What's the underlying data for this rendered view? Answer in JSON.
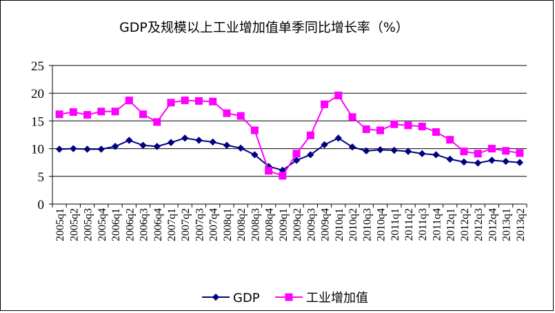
{
  "chart_data": {
    "type": "line",
    "title": "GDP及规模以上工业增加值单季同比增长率（%）",
    "xlabel": "",
    "ylabel": "",
    "ylim": [
      0,
      25
    ],
    "yticks": [
      "0",
      "5",
      "10",
      "15",
      "20",
      "25"
    ],
    "grid": "horizontal",
    "legend_position": "bottom",
    "categories": [
      "2005q1",
      "2005q2",
      "2005q3",
      "2005q4",
      "2006q1",
      "2006q2",
      "2006q3",
      "2006q4",
      "2007q1",
      "2007q2",
      "2007q3",
      "2007q4",
      "2008q1",
      "2008q2",
      "2008q3",
      "2008q4",
      "2009q1",
      "2009q2",
      "2009q3",
      "2009q4",
      "2010q1",
      "2010q2",
      "2010q3",
      "2010q4",
      "2011q1",
      "2011q2",
      "2011q3",
      "2011q4",
      "2012q1",
      "2012q2",
      "2012q3",
      "2012q4",
      "2013q1",
      "2013q2"
    ],
    "series": [
      {
        "name": "GDP",
        "color": "#000080",
        "marker": "diamond",
        "values": [
          9.9,
          10.0,
          9.9,
          9.9,
          10.4,
          11.5,
          10.6,
          10.4,
          11.1,
          11.9,
          11.5,
          11.2,
          10.6,
          10.1,
          8.9,
          6.8,
          6.1,
          7.9,
          8.9,
          10.7,
          11.9,
          10.3,
          9.6,
          9.8,
          9.7,
          9.5,
          9.1,
          8.9,
          8.1,
          7.6,
          7.4,
          7.9,
          7.7,
          7.5
        ]
      },
      {
        "name": "工业增加值",
        "color": "#FF00FF",
        "marker": "square",
        "values": [
          16.2,
          16.6,
          16.1,
          16.7,
          16.7,
          18.7,
          16.2,
          14.8,
          18.3,
          18.7,
          18.6,
          18.5,
          16.4,
          15.9,
          13.3,
          6.0,
          5.1,
          9.1,
          12.4,
          18.0,
          19.6,
          15.7,
          13.5,
          13.3,
          14.4,
          14.2,
          14.0,
          13.0,
          11.6,
          9.5,
          9.1,
          10.0,
          9.6,
          9.2
        ]
      }
    ]
  }
}
